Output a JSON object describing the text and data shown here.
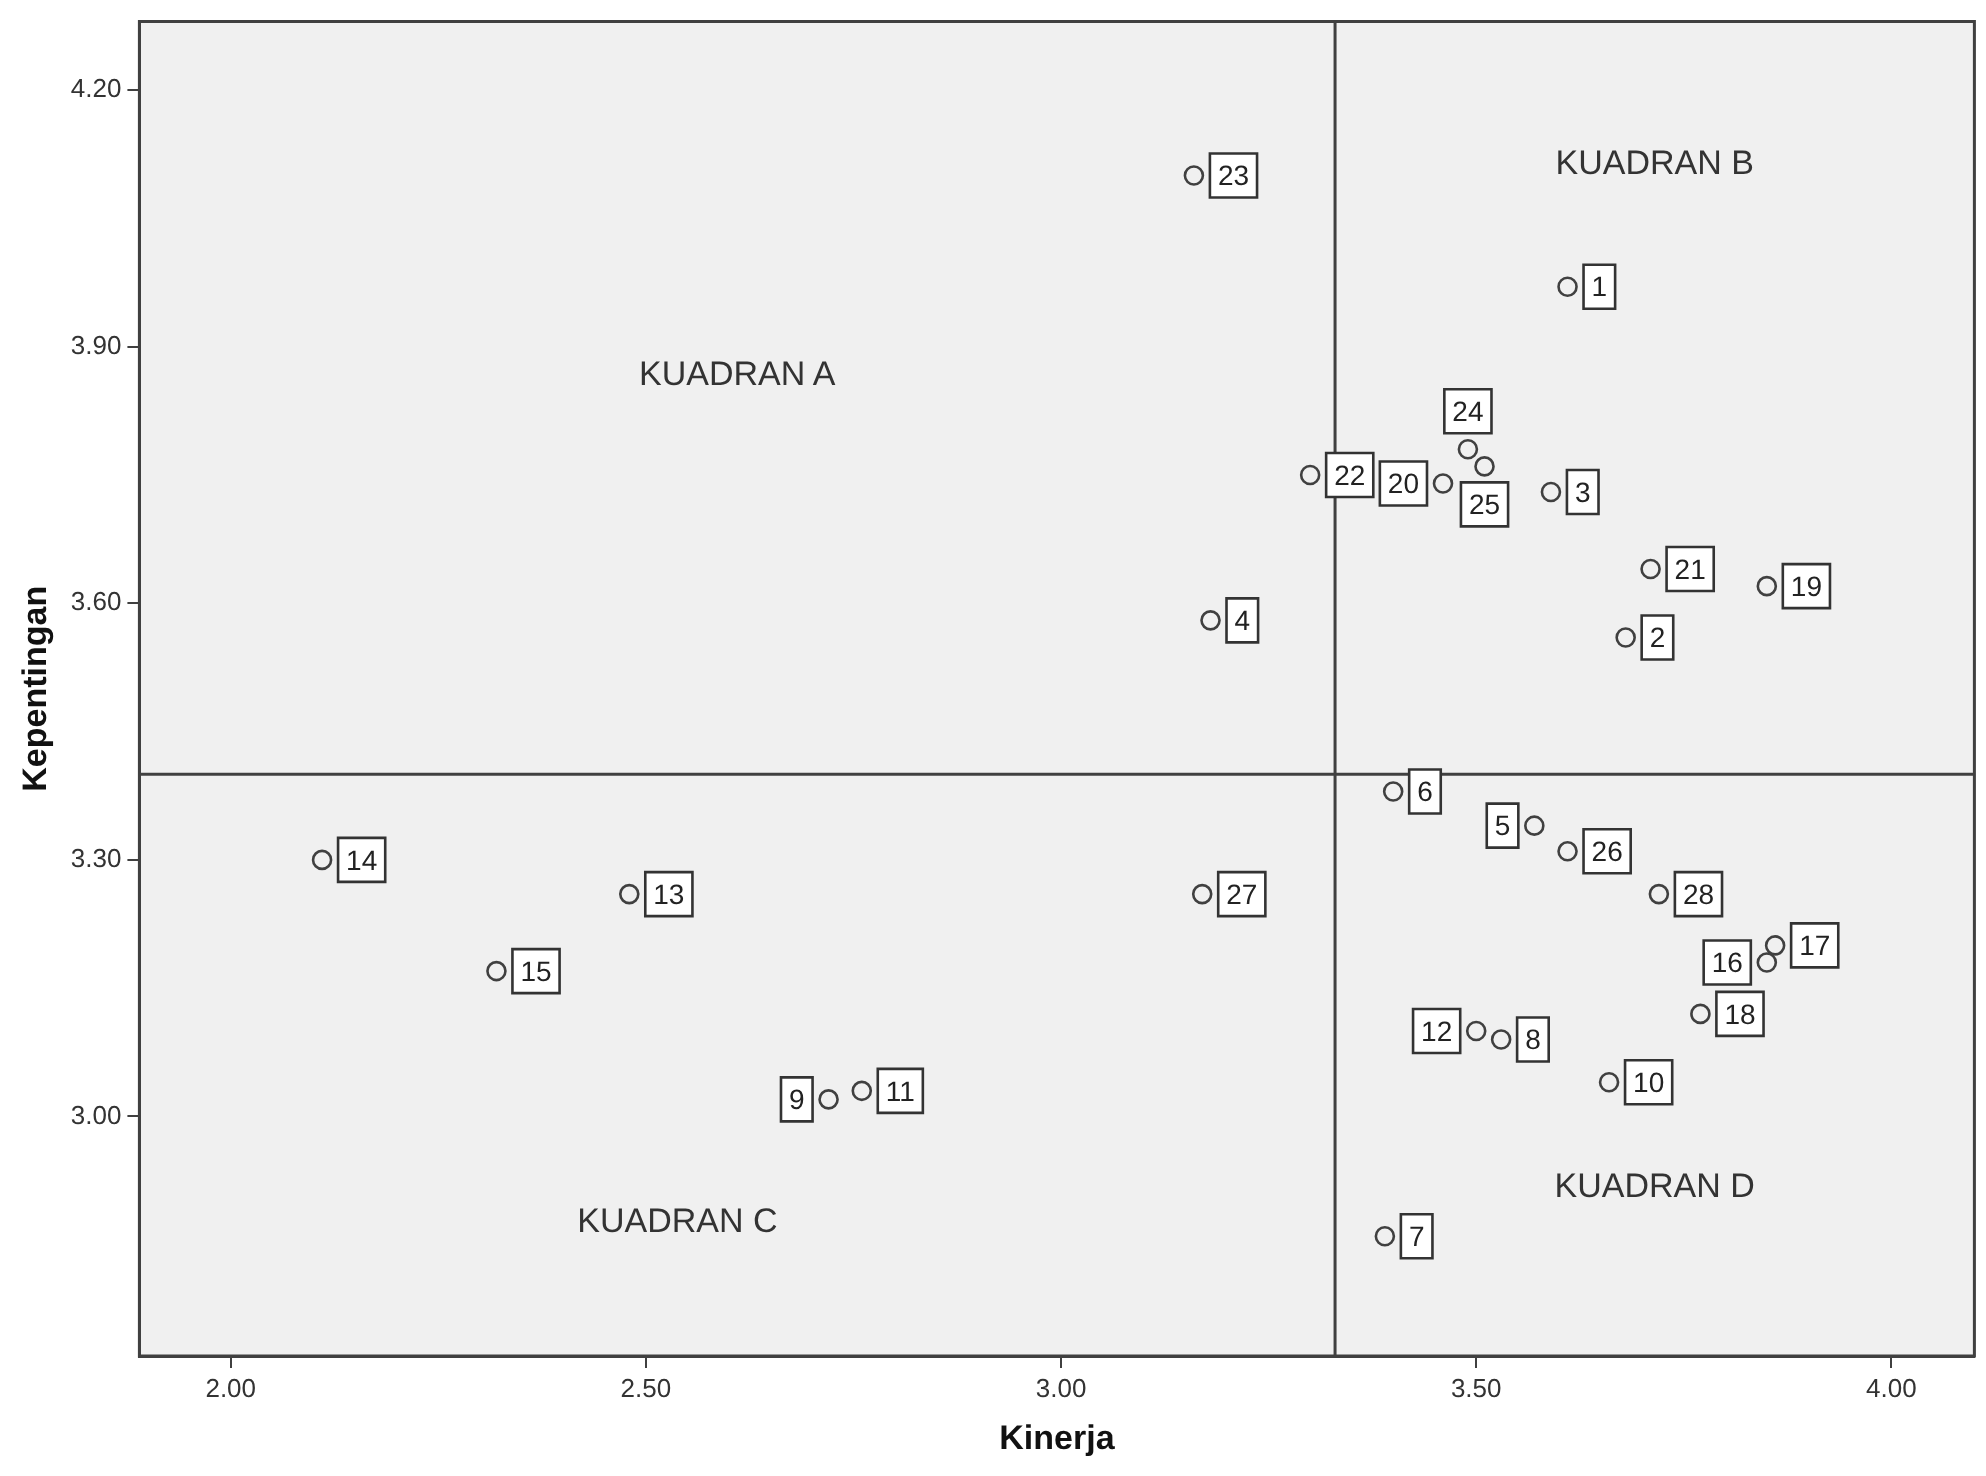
{
  "chart_data": {
    "type": "scatter",
    "xlabel": "Kinerja",
    "ylabel": "Kepentingan",
    "x": [
      3.61,
      3.68,
      3.59,
      3.18,
      3.57,
      3.4,
      3.39,
      3.53,
      2.72,
      3.66,
      2.76,
      3.5,
      2.48,
      2.11,
      2.32,
      3.85,
      3.86,
      3.77,
      3.85,
      3.46,
      3.71,
      3.3,
      3.16,
      3.49,
      3.51,
      3.61,
      3.17,
      3.72
    ],
    "series": [
      {
        "color": "#404040",
        "values": [
          3.97,
          3.56,
          3.73,
          3.58,
          3.34,
          3.38,
          2.86,
          3.09,
          3.02,
          3.04,
          3.03,
          3.1,
          3.26,
          3.3,
          3.17,
          3.18,
          3.2,
          3.12,
          3.62,
          3.74,
          3.64,
          3.75,
          4.1,
          3.78,
          3.76,
          3.31,
          3.26,
          3.26
        ]
      }
    ],
    "marker": "circle",
    "grid": false,
    "legend": false,
    "xlim": [
      1.89,
      4.1
    ],
    "ylim": [
      2.72,
      4.28
    ],
    "xticks": [
      {
        "value": 2,
        "label": "2.00"
      },
      {
        "value": 2.5,
        "label": "2.50"
      },
      {
        "value": 3,
        "label": "3.00"
      },
      {
        "value": 3.5,
        "label": "3.50"
      },
      {
        "value": 4,
        "label": "4.00"
      }
    ],
    "yticks": [
      {
        "value": 3,
        "label": "3.00"
      },
      {
        "value": 3.3,
        "label": "3.30"
      },
      {
        "value": 3.6,
        "label": "3.60"
      },
      {
        "value": 3.9,
        "label": "3.90"
      },
      {
        "value": 4.2,
        "label": "4.20"
      }
    ],
    "ref_lines": [
      {
        "axis": "x",
        "value": 3.33,
        "color": "#404040"
      },
      {
        "axis": "y",
        "value": 3.4,
        "color": "#404040"
      }
    ],
    "annotations": [
      "KUADRAN A",
      "KUADRAN B",
      "KUADRAN C",
      "KUADRAN D",
      {
        "text": "1",
        "x": 3.61,
        "y": 3.97
      },
      {
        "text": "2",
        "x": 3.68,
        "y": 3.56
      },
      {
        "text": "3",
        "x": 3.59,
        "y": 3.73
      },
      {
        "text": "4",
        "x": 3.18,
        "y": 3.58
      },
      {
        "text": "5",
        "x": 3.57,
        "y": 3.34
      },
      {
        "text": "6",
        "x": 3.4,
        "y": 3.38
      },
      {
        "text": "7",
        "x": 3.39,
        "y": 2.86
      },
      {
        "text": "8",
        "x": 3.53,
        "y": 3.09
      },
      {
        "text": "9",
        "x": 2.72,
        "y": 3.02
      },
      {
        "text": "10",
        "x": 3.66,
        "y": 3.04
      },
      {
        "text": "11",
        "x": 2.76,
        "y": 3.03
      },
      {
        "text": "12",
        "x": 3.5,
        "y": 3.1
      },
      {
        "text": "13",
        "x": 2.48,
        "y": 3.26
      },
      {
        "text": "14",
        "x": 2.11,
        "y": 3.3
      },
      {
        "text": "15",
        "x": 2.32,
        "y": 3.17
      },
      {
        "text": "16",
        "x": 3.85,
        "y": 3.18
      },
      {
        "text": "17",
        "x": 3.86,
        "y": 3.2
      },
      {
        "text": "18",
        "x": 3.77,
        "y": 3.12
      },
      {
        "text": "19",
        "x": 3.85,
        "y": 3.62
      },
      {
        "text": "20",
        "x": 3.46,
        "y": 3.74
      },
      {
        "text": "21",
        "x": 3.71,
        "y": 3.64
      },
      {
        "text": "22",
        "x": 3.3,
        "y": 3.75
      },
      {
        "text": "23",
        "x": 3.16,
        "y": 4.1
      },
      {
        "text": "24",
        "x": 3.49,
        "y": 3.78
      },
      {
        "text": "25",
        "x": 3.51,
        "y": 3.76
      },
      {
        "text": "26",
        "x": 3.61,
        "y": 3.31
      },
      {
        "text": "27",
        "x": 3.17,
        "y": 3.26
      },
      {
        "text": "28",
        "x": 3.72,
        "y": 3.26
      }
    ]
  }
}
